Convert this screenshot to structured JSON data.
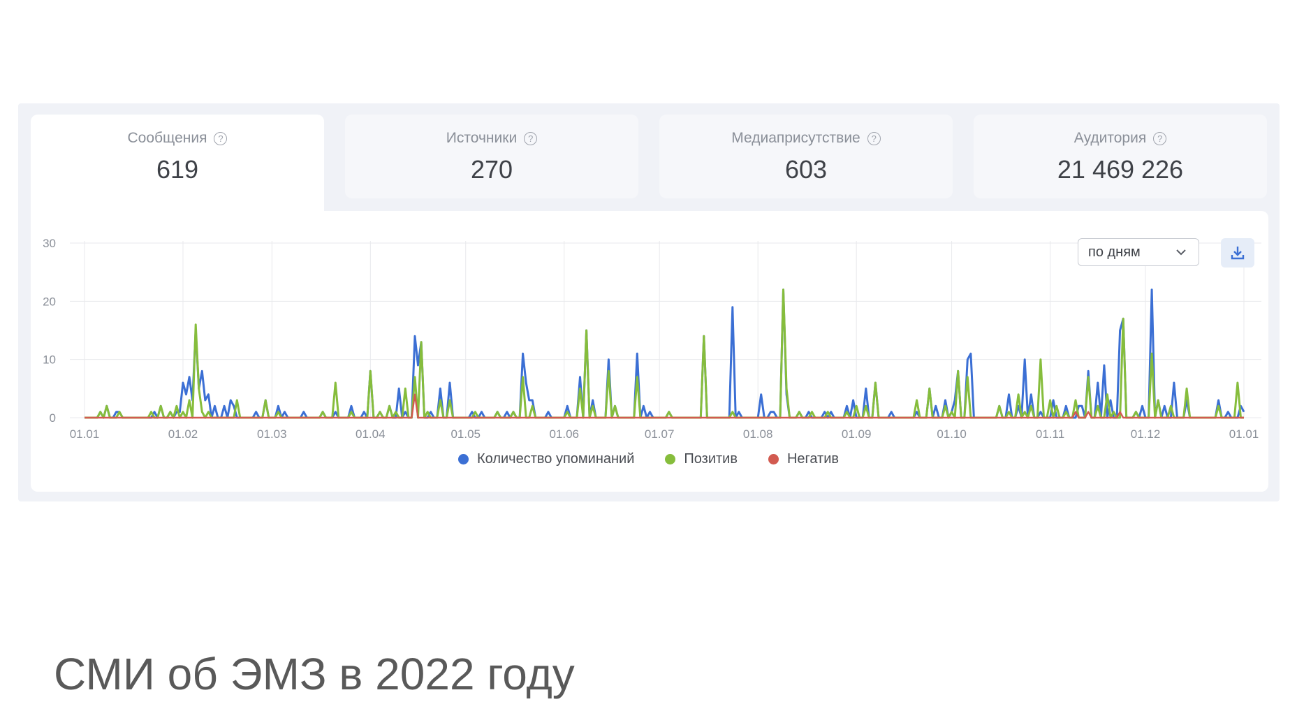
{
  "stats": [
    {
      "label": "Сообщения",
      "value": "619",
      "active": true
    },
    {
      "label": "Источники",
      "value": "270",
      "active": false
    },
    {
      "label": "Медиаприсутствие",
      "value": "603",
      "active": false
    },
    {
      "label": "Аудитория",
      "value": "21 469 226",
      "active": false
    }
  ],
  "controls": {
    "period_label": "по дням",
    "chevron_icon": "chevron-down-icon",
    "download_icon": "download-icon",
    "help_icon": "help-circle-icon"
  },
  "footer": {
    "title": "СМИ об ЭМЗ в 2022 году"
  },
  "chart_data": {
    "type": "line",
    "x_start": "2022-01-01",
    "x_end": "2023-01-01",
    "x_ticks": [
      "01.01",
      "01.02",
      "01.03",
      "01.04",
      "01.05",
      "01.06",
      "01.07",
      "01.08",
      "01.09",
      "01.10",
      "01.11",
      "01.12",
      "01.01"
    ],
    "ylim": [
      0,
      30
    ],
    "y_ticks": [
      "0",
      "10",
      "20",
      "30"
    ],
    "grid": true,
    "legend_position": "bottom-center",
    "series": [
      {
        "name": "Количество упоминаний",
        "color": "#3b6fd4",
        "peaks": [
          [
            "2022-01-06",
            1
          ],
          [
            "2022-01-08",
            2
          ],
          [
            "2022-01-11",
            1
          ],
          [
            "2022-01-12",
            1
          ],
          [
            "2022-01-23",
            1
          ],
          [
            "2022-01-25",
            2
          ],
          [
            "2022-01-28",
            1
          ],
          [
            "2022-01-30",
            1
          ],
          [
            "2022-01-31",
            1
          ],
          [
            "2022-02-01",
            6
          ],
          [
            "2022-02-02",
            4
          ],
          [
            "2022-02-03",
            7
          ],
          [
            "2022-02-04",
            3
          ],
          [
            "2022-02-05",
            15
          ],
          [
            "2022-02-06",
            5
          ],
          [
            "2022-02-07",
            8
          ],
          [
            "2022-02-08",
            3
          ],
          [
            "2022-02-09",
            4
          ],
          [
            "2022-02-11",
            2
          ],
          [
            "2022-02-14",
            2
          ],
          [
            "2022-02-16",
            3
          ],
          [
            "2022-02-17",
            2
          ],
          [
            "2022-02-24",
            1
          ],
          [
            "2022-02-27",
            3
          ],
          [
            "2022-03-03",
            2
          ],
          [
            "2022-03-05",
            1
          ],
          [
            "2022-03-11",
            1
          ],
          [
            "2022-03-17",
            1
          ],
          [
            "2022-03-21",
            1
          ],
          [
            "2022-03-26",
            2
          ],
          [
            "2022-03-30",
            1
          ],
          [
            "2022-04-01",
            8
          ],
          [
            "2022-04-04",
            1
          ],
          [
            "2022-04-07",
            2
          ],
          [
            "2022-04-10",
            5
          ],
          [
            "2022-04-12",
            1
          ],
          [
            "2022-04-15",
            14
          ],
          [
            "2022-04-16",
            9
          ],
          [
            "2022-04-17",
            13
          ],
          [
            "2022-04-20",
            1
          ],
          [
            "2022-04-23",
            5
          ],
          [
            "2022-04-26",
            6
          ],
          [
            "2022-05-03",
            1
          ],
          [
            "2022-05-06",
            1
          ],
          [
            "2022-05-11",
            1
          ],
          [
            "2022-05-14",
            1
          ],
          [
            "2022-05-16",
            1
          ],
          [
            "2022-05-19",
            11
          ],
          [
            "2022-05-20",
            6
          ],
          [
            "2022-05-21",
            3
          ],
          [
            "2022-05-22",
            3
          ],
          [
            "2022-05-27",
            1
          ],
          [
            "2022-06-02",
            2
          ],
          [
            "2022-06-06",
            7
          ],
          [
            "2022-06-08",
            15
          ],
          [
            "2022-06-10",
            3
          ],
          [
            "2022-06-15",
            10
          ],
          [
            "2022-06-17",
            2
          ],
          [
            "2022-06-24",
            11
          ],
          [
            "2022-06-26",
            2
          ],
          [
            "2022-06-28",
            1
          ],
          [
            "2022-07-04",
            1
          ],
          [
            "2022-07-15",
            14
          ],
          [
            "2022-07-24",
            19
          ],
          [
            "2022-07-26",
            1
          ],
          [
            "2022-08-02",
            4
          ],
          [
            "2022-08-05",
            1
          ],
          [
            "2022-08-06",
            1
          ],
          [
            "2022-08-09",
            22
          ],
          [
            "2022-08-10",
            4
          ],
          [
            "2022-08-14",
            1
          ],
          [
            "2022-08-17",
            1
          ],
          [
            "2022-08-22",
            1
          ],
          [
            "2022-08-24",
            1
          ],
          [
            "2022-08-29",
            2
          ],
          [
            "2022-08-31",
            3
          ],
          [
            "2022-09-04",
            5
          ],
          [
            "2022-09-07",
            6
          ],
          [
            "2022-09-12",
            1
          ],
          [
            "2022-09-20",
            1
          ],
          [
            "2022-09-24",
            5
          ],
          [
            "2022-09-26",
            2
          ],
          [
            "2022-09-29",
            3
          ],
          [
            "2022-10-01",
            1
          ],
          [
            "2022-10-02",
            3
          ],
          [
            "2022-10-03",
            8
          ],
          [
            "2022-10-06",
            10
          ],
          [
            "2022-10-07",
            11
          ],
          [
            "2022-10-16",
            2
          ],
          [
            "2022-10-19",
            4
          ],
          [
            "2022-10-22",
            2
          ],
          [
            "2022-10-24",
            10
          ],
          [
            "2022-10-26",
            4
          ],
          [
            "2022-10-29",
            1
          ],
          [
            "2022-11-02",
            3
          ],
          [
            "2022-11-06",
            2
          ],
          [
            "2022-11-10",
            2
          ],
          [
            "2022-11-11",
            2
          ],
          [
            "2022-11-13",
            8
          ],
          [
            "2022-11-16",
            6
          ],
          [
            "2022-11-18",
            9
          ],
          [
            "2022-11-20",
            3
          ],
          [
            "2022-11-23",
            15
          ],
          [
            "2022-11-24",
            17
          ],
          [
            "2022-11-28",
            1
          ],
          [
            "2022-11-30",
            2
          ],
          [
            "2022-12-03",
            22
          ],
          [
            "2022-12-05",
            3
          ],
          [
            "2022-12-07",
            2
          ],
          [
            "2022-12-10",
            6
          ],
          [
            "2022-12-14",
            3
          ],
          [
            "2022-12-24",
            3
          ],
          [
            "2022-12-27",
            1
          ],
          [
            "2022-12-31",
            2
          ],
          [
            "2023-01-01",
            1
          ]
        ]
      },
      {
        "name": "Позитив",
        "color": "#86bd3c",
        "peaks": [
          [
            "2022-01-06",
            1
          ],
          [
            "2022-01-08",
            2
          ],
          [
            "2022-01-12",
            1
          ],
          [
            "2022-01-22",
            1
          ],
          [
            "2022-01-25",
            2
          ],
          [
            "2022-01-28",
            1
          ],
          [
            "2022-01-30",
            2
          ],
          [
            "2022-02-01",
            1
          ],
          [
            "2022-02-03",
            3
          ],
          [
            "2022-02-05",
            16
          ],
          [
            "2022-02-06",
            5
          ],
          [
            "2022-02-07",
            1
          ],
          [
            "2022-02-09",
            1
          ],
          [
            "2022-02-18",
            3
          ],
          [
            "2022-02-27",
            3
          ],
          [
            "2022-03-03",
            1
          ],
          [
            "2022-03-17",
            1
          ],
          [
            "2022-03-21",
            6
          ],
          [
            "2022-03-26",
            1
          ],
          [
            "2022-04-01",
            8
          ],
          [
            "2022-04-04",
            1
          ],
          [
            "2022-04-07",
            2
          ],
          [
            "2022-04-09",
            1
          ],
          [
            "2022-04-12",
            5
          ],
          [
            "2022-04-15",
            7
          ],
          [
            "2022-04-17",
            13
          ],
          [
            "2022-04-19",
            1
          ],
          [
            "2022-04-23",
            3
          ],
          [
            "2022-04-26",
            3
          ],
          [
            "2022-05-04",
            1
          ],
          [
            "2022-05-11",
            1
          ],
          [
            "2022-05-16",
            1
          ],
          [
            "2022-05-19",
            7
          ],
          [
            "2022-05-22",
            2
          ],
          [
            "2022-06-02",
            1
          ],
          [
            "2022-06-06",
            5
          ],
          [
            "2022-06-08",
            15
          ],
          [
            "2022-06-10",
            2
          ],
          [
            "2022-06-15",
            8
          ],
          [
            "2022-06-17",
            2
          ],
          [
            "2022-06-24",
            7
          ],
          [
            "2022-07-04",
            1
          ],
          [
            "2022-07-15",
            14
          ],
          [
            "2022-07-24",
            1
          ],
          [
            "2022-08-09",
            22
          ],
          [
            "2022-08-10",
            5
          ],
          [
            "2022-08-14",
            1
          ],
          [
            "2022-08-18",
            1
          ],
          [
            "2022-08-23",
            1
          ],
          [
            "2022-08-29",
            1
          ],
          [
            "2022-09-01",
            2
          ],
          [
            "2022-09-04",
            2
          ],
          [
            "2022-09-07",
            6
          ],
          [
            "2022-09-20",
            3
          ],
          [
            "2022-09-24",
            5
          ],
          [
            "2022-09-29",
            2
          ],
          [
            "2022-10-01",
            1
          ],
          [
            "2022-10-03",
            8
          ],
          [
            "2022-10-06",
            7
          ],
          [
            "2022-10-16",
            2
          ],
          [
            "2022-10-19",
            1
          ],
          [
            "2022-10-22",
            4
          ],
          [
            "2022-10-24",
            1
          ],
          [
            "2022-10-26",
            2
          ],
          [
            "2022-10-29",
            10
          ],
          [
            "2022-11-01",
            3
          ],
          [
            "2022-11-03",
            2
          ],
          [
            "2022-11-06",
            1
          ],
          [
            "2022-11-09",
            3
          ],
          [
            "2022-11-13",
            7
          ],
          [
            "2022-11-16",
            2
          ],
          [
            "2022-11-19",
            4
          ],
          [
            "2022-11-21",
            1
          ],
          [
            "2022-11-24",
            17
          ],
          [
            "2022-11-28",
            1
          ],
          [
            "2022-12-03",
            11
          ],
          [
            "2022-12-05",
            3
          ],
          [
            "2022-12-09",
            2
          ],
          [
            "2022-12-14",
            5
          ],
          [
            "2022-12-24",
            2
          ],
          [
            "2022-12-30",
            6
          ]
        ]
      },
      {
        "name": "Негатив",
        "color": "#d25a50",
        "peaks": [
          [
            "2022-04-15",
            4
          ],
          [
            "2022-11-09",
            1
          ],
          [
            "2022-11-13",
            1
          ],
          [
            "2022-11-23",
            1
          ]
        ]
      }
    ]
  }
}
